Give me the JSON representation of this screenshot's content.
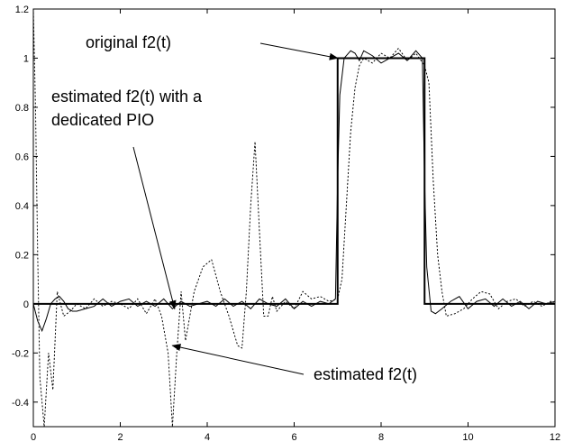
{
  "chart_data": {
    "type": "line",
    "title": "",
    "xlabel": "",
    "ylabel": "",
    "xlim": [
      0,
      12
    ],
    "ylim": [
      -0.5,
      1.2
    ],
    "grid": false,
    "legend": "none",
    "x_ticks": [
      0,
      2,
      4,
      6,
      8,
      10,
      12
    ],
    "y_ticks": [
      1.2,
      1,
      0.8,
      0.6,
      0.4,
      0.2,
      0,
      -0.2,
      -0.4
    ],
    "x_tick_labels": [
      "0",
      "2",
      "4",
      "6",
      "8",
      "10",
      "12"
    ],
    "y_tick_labels": [
      "1.2",
      "1",
      "0.8",
      "0.6",
      "0.4",
      "0.2",
      "0",
      "-0.2",
      "-0.4"
    ],
    "series": [
      {
        "style": "solid-thick",
        "x": [
          0,
          7,
          7,
          9,
          9,
          12
        ],
        "y": [
          0,
          0,
          1,
          1,
          0,
          0
        ]
      },
      {
        "style": "solid-thin",
        "x": [
          0,
          0.1,
          0.2,
          0.3,
          0.4,
          0.5,
          0.6,
          0.7,
          0.8,
          0.9,
          1.0,
          1.2,
          1.4,
          1.6,
          1.8,
          2.0,
          2.2,
          2.4,
          2.6,
          2.8,
          3.0,
          3.2,
          3.4,
          3.6,
          3.8,
          4.0,
          4.2,
          4.4,
          4.6,
          4.8,
          5.0,
          5.2,
          5.4,
          5.6,
          5.8,
          6.0,
          6.2,
          6.4,
          6.6,
          6.8,
          6.95,
          7.0,
          7.05,
          7.15,
          7.3,
          7.4,
          7.5,
          7.6,
          7.8,
          8.0,
          8.2,
          8.4,
          8.6,
          8.8,
          8.95,
          9.0,
          9.05,
          9.15,
          9.25,
          9.4,
          9.6,
          9.8,
          10.0,
          10.2,
          10.4,
          10.6,
          10.8,
          11.0,
          11.2,
          11.4,
          11.6,
          11.8,
          12.0
        ],
        "y": [
          0,
          -0.07,
          -0.11,
          -0.06,
          0.0,
          0.02,
          0.03,
          0.01,
          -0.02,
          -0.03,
          -0.03,
          -0.02,
          -0.01,
          0.02,
          -0.01,
          0.01,
          0.02,
          -0.01,
          0.01,
          -0.01,
          0.02,
          -0.02,
          0.01,
          -0.01,
          0.0,
          0.01,
          -0.01,
          0.02,
          -0.01,
          0.01,
          -0.02,
          0.02,
          0.0,
          -0.01,
          0.02,
          -0.02,
          0.01,
          -0.01,
          0.01,
          0.0,
          0.02,
          0.5,
          0.85,
          1.0,
          1.03,
          1.02,
          0.99,
          1.03,
          1.01,
          0.98,
          1.0,
          1.02,
          0.99,
          1.03,
          1.0,
          0.5,
          0.15,
          -0.03,
          -0.04,
          -0.02,
          0.01,
          0.03,
          -0.02,
          0.01,
          0.02,
          -0.01,
          0.02,
          -0.01,
          0.01,
          -0.02,
          0.01,
          0.0,
          0.01
        ]
      },
      {
        "style": "dotted",
        "x": [
          0.0,
          0.05,
          0.1,
          0.15,
          0.25,
          0.35,
          0.45,
          0.55,
          0.7,
          0.85,
          1.0,
          1.2,
          1.4,
          1.6,
          1.8,
          2.0,
          2.2,
          2.4,
          2.6,
          2.8,
          2.95,
          3.1,
          3.2,
          3.3,
          3.4,
          3.5,
          3.7,
          3.9,
          4.1,
          4.3,
          4.5,
          4.7,
          4.8,
          4.9,
          5.0,
          5.1,
          5.2,
          5.3,
          5.4,
          5.5,
          5.6,
          5.8,
          6.0,
          6.2,
          6.4,
          6.6,
          6.8,
          7.0,
          7.1,
          7.2,
          7.3,
          7.4,
          7.5,
          7.6,
          7.8,
          8.0,
          8.2,
          8.4,
          8.6,
          8.8,
          9.0,
          9.1,
          9.2,
          9.3,
          9.4,
          9.5,
          9.7,
          9.9,
          10.1,
          10.3,
          10.5,
          10.7,
          10.9,
          11.1,
          11.3,
          11.5,
          11.7,
          11.9,
          12.0
        ],
        "y": [
          1.2,
          0.8,
          0.2,
          -0.3,
          -0.5,
          -0.2,
          -0.35,
          0.05,
          -0.05,
          -0.03,
          0.0,
          -0.02,
          0.02,
          -0.01,
          0.01,
          0.0,
          -0.02,
          0.02,
          -0.04,
          0.02,
          -0.05,
          -0.2,
          -0.5,
          -0.2,
          0.05,
          -0.15,
          0.05,
          0.15,
          0.18,
          0.05,
          -0.05,
          -0.17,
          -0.18,
          0.05,
          0.4,
          0.66,
          0.3,
          -0.05,
          -0.05,
          0.03,
          -0.03,
          0.01,
          -0.02,
          0.05,
          0.02,
          0.03,
          0.01,
          0.02,
          0.1,
          0.4,
          0.7,
          0.88,
          0.97,
          1.0,
          0.98,
          1.02,
          1.0,
          1.04,
          0.99,
          1.02,
          0.97,
          0.9,
          0.5,
          0.2,
          0.05,
          -0.05,
          -0.04,
          -0.02,
          0.02,
          0.05,
          0.04,
          -0.02,
          0.01,
          0.02,
          -0.01,
          0.01,
          -0.01,
          0.01,
          0.0
        ]
      }
    ],
    "annotations": [
      {
        "lines": [
          "original f2(t)"
        ],
        "arrow_to": [
          7.0,
          1.0
        ]
      },
      {
        "lines": [
          "estimated f2(t) with a",
          "dedicated PIO"
        ],
        "arrow_to": [
          3.25,
          -0.02
        ]
      },
      {
        "lines": [
          "estimated f2(t)"
        ],
        "arrow_to": [
          3.2,
          -0.17
        ]
      }
    ]
  }
}
